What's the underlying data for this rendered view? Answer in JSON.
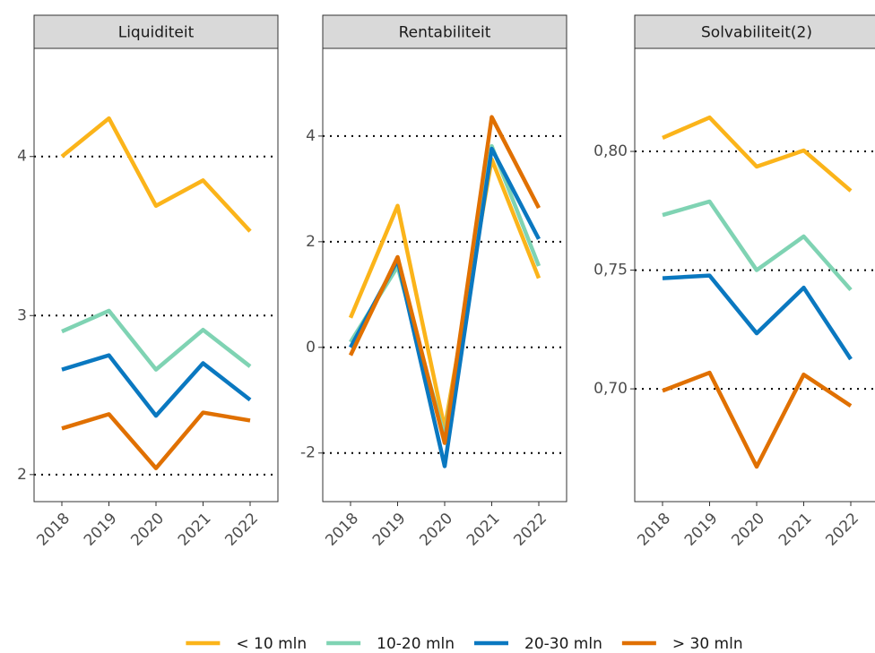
{
  "chart_data": [
    {
      "type": "line",
      "title": "Liquiditeit",
      "categories": [
        "2018",
        "2019",
        "2020",
        "2021",
        "2022"
      ],
      "ylim": [
        1.83,
        4.68
      ],
      "yticks": [
        2,
        3,
        4
      ],
      "grid": true,
      "series": [
        {
          "name": "< 10 mln",
          "color": "#fbb41a",
          "values": [
            4.0,
            4.24,
            3.69,
            3.85,
            3.53
          ]
        },
        {
          "name": "10-20 mln",
          "color": "#7fd3b3",
          "values": [
            2.9,
            3.03,
            2.66,
            2.91,
            2.68
          ]
        },
        {
          "name": "20-30 mln",
          "color": "#0a78c0",
          "values": [
            2.66,
            2.75,
            2.37,
            2.7,
            2.47
          ]
        },
        {
          "name": "> 30 mln",
          "color": "#e07000",
          "values": [
            2.29,
            2.38,
            2.04,
            2.39,
            2.34
          ]
        }
      ]
    },
    {
      "type": "line",
      "title": "Rentabiliteit",
      "categories": [
        "2018",
        "2019",
        "2020",
        "2021",
        "2022"
      ],
      "ylim": [
        -2.92,
        5.66
      ],
      "yticks": [
        -2,
        0,
        2,
        4
      ],
      "grid": true,
      "series": [
        {
          "color": "#fbb41a",
          "values": [
            0.56,
            2.68,
            -1.53,
            3.56,
            1.31
          ]
        },
        {
          "color": "#7fd3b3",
          "values": [
            0.1,
            1.53,
            -1.7,
            3.81,
            1.54
          ]
        },
        {
          "color": "#0a78c0",
          "values": [
            0.0,
            1.65,
            -2.25,
            3.76,
            2.05
          ]
        },
        {
          "color": "#e07000",
          "values": [
            -0.15,
            1.71,
            -1.81,
            4.36,
            2.64
          ]
        }
      ]
    },
    {
      "type": "line",
      "title": "Solvabiliteit(2)",
      "categories": [
        "2018",
        "2019",
        "2020",
        "2021",
        "2022"
      ],
      "ylim": [
        0.6525,
        0.8434
      ],
      "yticks": [
        {
          "value": 0.7,
          "label": "0,70"
        },
        {
          "value": 0.75,
          "label": "0,75"
        },
        {
          "value": 0.8,
          "label": "0,80"
        }
      ],
      "grid": true,
      "series": [
        {
          "color": "#fbb41a",
          "values": [
            0.8057,
            0.8143,
            0.7936,
            0.8004,
            0.7834
          ]
        },
        {
          "color": "#7fd3b3",
          "values": [
            0.7732,
            0.7789,
            0.75,
            0.7642,
            0.7417
          ]
        },
        {
          "color": "#0a78c0",
          "values": [
            0.7466,
            0.7477,
            0.7234,
            0.7426,
            0.7125
          ]
        },
        {
          "color": "#e07000",
          "values": [
            0.6992,
            0.7068,
            0.6672,
            0.706,
            0.6928
          ]
        }
      ]
    }
  ]
}
